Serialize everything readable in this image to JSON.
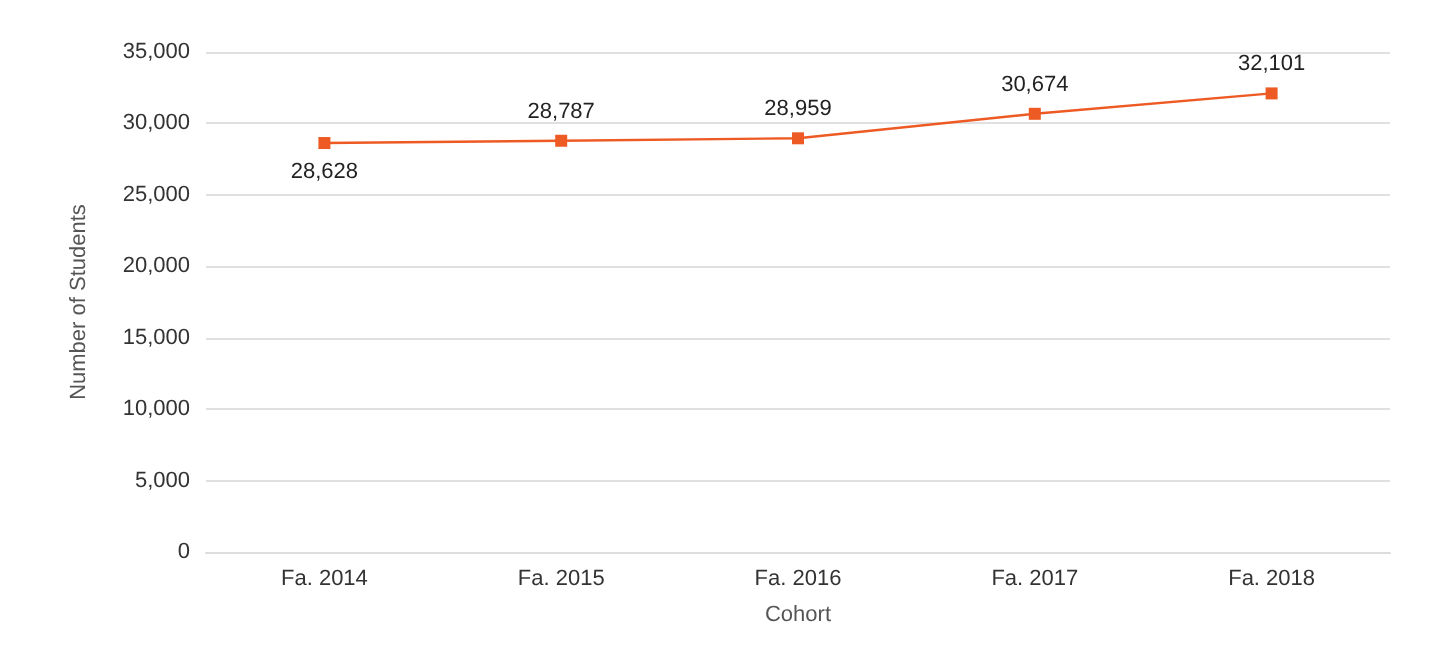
{
  "chart_data": {
    "type": "line",
    "xlabel": "Cohort",
    "ylabel": "Number of Students",
    "categories": [
      "Fa. 2014",
      "Fa. 2015",
      "Fa. 2016",
      "Fa. 2017",
      "Fa. 2018"
    ],
    "series": [
      {
        "color": "#ee5a24",
        "values": [
          28628,
          28787,
          28959,
          30674,
          32101
        ],
        "value_labels": [
          "28,628",
          "28,787",
          "28,959",
          "30,674",
          "32,101"
        ]
      }
    ],
    "ylim": [
      0,
      35000
    ],
    "yticks": [
      0,
      {
        "value": 5000,
        "label": "5,000"
      },
      {
        "value": 10000,
        "label": "10,000"
      },
      {
        "value": 15000,
        "label": "15,000"
      },
      {
        "value": 20000,
        "label": "20,000"
      },
      {
        "value": 25000,
        "label": "25,000"
      },
      {
        "value": 30000,
        "label": "30,000"
      },
      {
        "value": 35000,
        "label": "35,000"
      }
    ],
    "grid": "y",
    "marker": "square",
    "line_style": "solid"
  }
}
